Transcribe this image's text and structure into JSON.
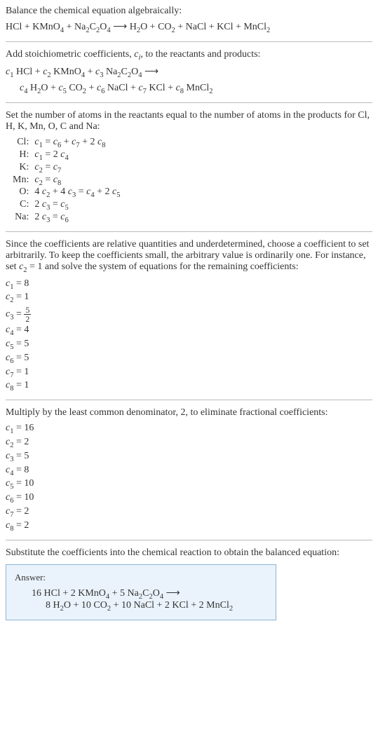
{
  "intro": {
    "line1": "Balance the chemical equation algebraically:",
    "eq_lhs": "HCl + KMnO",
    "eq_lhs2": " + Na",
    "eq_lhs3": "C",
    "eq_lhs4": "O",
    "eq_rhs1": "H",
    "eq_rhs2": "O + CO",
    "eq_rhs3": " + NaCl + KCl + MnCl"
  },
  "step1": {
    "text": "Add stoichiometric coefficients, ",
    "text2": ", to the reactants and products:",
    "line1a": " HCl + ",
    "line1b": " KMnO",
    "line1c": " + ",
    "line1d": " Na",
    "line1e": "C",
    "line1f": "O",
    "line2a": " H",
    "line2b": "O + ",
    "line2c": " CO",
    "line2d": " + ",
    "line2e": " NaCl + ",
    "line2f": " KCl + ",
    "line2g": " MnCl"
  },
  "step2": {
    "text1": "Set the number of atoms in the reactants equal to the number of atoms in the products for Cl, H, K, Mn, O, C and Na:",
    "atoms": [
      {
        "label": "Cl:",
        "eq": "c₁ = c₆ + c₇ + 2 c₈"
      },
      {
        "label": "H:",
        "eq": "c₁ = 2 c₄"
      },
      {
        "label": "K:",
        "eq": "c₂ = c₇"
      },
      {
        "label": "Mn:",
        "eq": "c₂ = c₈"
      },
      {
        "label": "O:",
        "eq": "4 c₂ + 4 c₃ = c₄ + 2 c₅"
      },
      {
        "label": "C:",
        "eq": "2 c₃ = c₅"
      },
      {
        "label": "Na:",
        "eq": "2 c₃ = c₆"
      }
    ]
  },
  "step3": {
    "text": "Since the coefficients are relative quantities and underdetermined, choose a coefficient to set arbitrarily. To keep the coefficients small, the arbitrary value is ordinarily one. For instance, set c₂ = 1 and solve the system of equations for the remaining coefficients:",
    "coeffs": [
      "c₁ = 8",
      "c₂ = 1",
      "c₃ = ",
      "c₄ = 4",
      "c₅ = 5",
      "c₆ = 5",
      "c₇ = 1",
      "c₈ = 1"
    ],
    "frac_num": "5",
    "frac_den": "2"
  },
  "step4": {
    "text": "Multiply by the least common denominator, 2, to eliminate fractional coefficients:",
    "coeffs": [
      "c₁ = 16",
      "c₂ = 2",
      "c₃ = 5",
      "c₄ = 8",
      "c₅ = 10",
      "c₆ = 10",
      "c₇ = 2",
      "c₈ = 2"
    ]
  },
  "step5": {
    "text": "Substitute the coefficients into the chemical reaction to obtain the balanced equation:"
  },
  "answer": {
    "label": "Answer:",
    "line1_a": "16 HCl + 2 KMnO",
    "line1_b": " + 5 Na",
    "line1_c": "C",
    "line1_d": "O",
    "line2_a": "8 H",
    "line2_b": "O + 10 CO",
    "line2_c": " + 10 NaCl + 2 KCl + 2 MnCl"
  },
  "style": {
    "text_color": "#333333",
    "rule_color": "#bbbbbb",
    "answer_bg": "#eaf3fb",
    "answer_border": "#8cb4d6",
    "font_size_body": 14,
    "font_size_answer_label": 13
  }
}
